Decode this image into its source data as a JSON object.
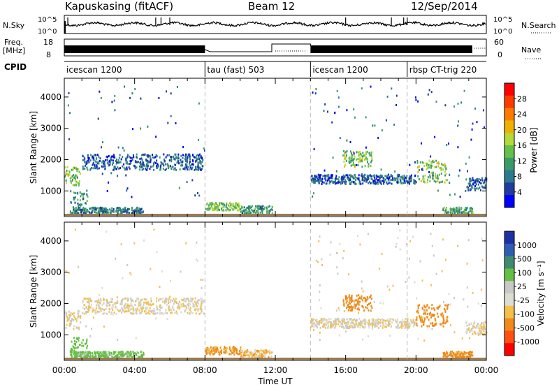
{
  "header": {
    "station": "Kapuskasing (fitACF)",
    "beam": "Beam 12",
    "date": "12/Sep/2014"
  },
  "left_labels": {
    "nsky": "N.Sky",
    "freq_line1": "Freq.",
    "freq_line2": "[MHz]",
    "cpid": "CPID"
  },
  "right_labels": {
    "nsearch": "N.Search",
    "nave": "Nave"
  },
  "panels": {
    "nsky_ticks": [
      "10^5",
      "10^0"
    ],
    "nsearch_ticks": [
      "10^5",
      "10^0"
    ],
    "freq_ticks": [
      "18",
      "8"
    ],
    "nave_ticks": [
      "60",
      "0"
    ]
  },
  "cpid_segments": [
    {
      "label": "icescan 1200",
      "start": 0,
      "end": 8
    },
    {
      "label": "tau (fast) 503",
      "start": 8,
      "end": 14
    },
    {
      "label": "icescan 1200",
      "start": 14,
      "end": 19.5
    },
    {
      "label": "rbsp CT-trig 220",
      "start": 19.5,
      "end": 23.2
    }
  ],
  "colors": {
    "power": [
      "#0000ff",
      "#1f3c9e",
      "#2b7a8f",
      "#3a9a6a",
      "#63c04a",
      "#b5d83a",
      "#f0b000",
      "#ff7a00",
      "#ff3a00",
      "#ff0000"
    ],
    "velocity": [
      "#1f2fa8",
      "#2f5db0",
      "#3f8a70",
      "#63c043",
      "#c8c8c8",
      "#dcdcd0",
      "#f5c04a",
      "#f08a1a",
      "#ff5010",
      "#ff0000"
    ]
  },
  "chart_data": [
    {
      "type": "heatmap",
      "name": "power",
      "xlabel": "",
      "ylabel": "Slant Range [km]",
      "xlim": [
        0,
        24
      ],
      "ylim": [
        180,
        4600
      ],
      "yticks": [
        1000,
        2000,
        3000,
        4000
      ],
      "colorbar_label": "Power [dB]",
      "colorbar_ticks": [
        "4",
        "8",
        "12",
        "16",
        "20",
        "24",
        "28"
      ],
      "colorbar_range": [
        0,
        30
      ],
      "echo_regions": [
        {
          "x0": 0.0,
          "x1": 0.9,
          "y0": 1200,
          "y1": 1800,
          "level": 14
        },
        {
          "x0": 0.3,
          "x1": 1.3,
          "y0": 300,
          "y1": 1000,
          "level": 10
        },
        {
          "x0": 0.5,
          "x1": 4.5,
          "y0": 300,
          "y1": 500,
          "level": 8
        },
        {
          "x0": 1.0,
          "x1": 7.9,
          "y0": 1700,
          "y1": 2200,
          "level": 6
        },
        {
          "x0": 8.0,
          "x1": 10.0,
          "y0": 400,
          "y1": 650,
          "level": 14
        },
        {
          "x0": 10.0,
          "x1": 11.8,
          "y0": 300,
          "y1": 550,
          "level": 10
        },
        {
          "x0": 14.0,
          "x1": 20.0,
          "y0": 1250,
          "y1": 1550,
          "level": 6
        },
        {
          "x0": 15.8,
          "x1": 17.5,
          "y0": 1800,
          "y1": 2300,
          "level": 14
        },
        {
          "x0": 20.0,
          "x1": 21.8,
          "y0": 1300,
          "y1": 2000,
          "level": 14
        },
        {
          "x0": 21.5,
          "x1": 23.2,
          "y0": 300,
          "y1": 500,
          "level": 12
        },
        {
          "x0": 22.8,
          "x1": 24.0,
          "y0": 1050,
          "y1": 1450,
          "level": 6
        }
      ]
    },
    {
      "type": "heatmap",
      "name": "velocity",
      "xlabel": "Time UT",
      "ylabel": "Slant Range [km]",
      "xlim": [
        0,
        24
      ],
      "ylim": [
        180,
        4600
      ],
      "xticks": [
        "00:00",
        "04:00",
        "08:00",
        "12:00",
        "16:00",
        "20:00",
        "00:00"
      ],
      "yticks": [
        1000,
        2000,
        3000,
        4000
      ],
      "colorbar_label": "Velocity [m s⁻¹]",
      "colorbar_ticks": [
        "1000",
        "500",
        "100",
        "25",
        "-25",
        "-100",
        "-500",
        "-1000"
      ],
      "echo_regions": [
        {
          "x0": 0.0,
          "x1": 0.9,
          "y0": 1200,
          "y1": 1800,
          "v": 0
        },
        {
          "x0": 0.3,
          "x1": 1.3,
          "y0": 300,
          "y1": 1000,
          "v": 200
        },
        {
          "x0": 0.5,
          "x1": 4.5,
          "y0": 300,
          "y1": 500,
          "v": 150
        },
        {
          "x0": 1.0,
          "x1": 7.9,
          "y0": 1700,
          "y1": 2200,
          "v": 0
        },
        {
          "x0": 8.0,
          "x1": 10.0,
          "y0": 400,
          "y1": 650,
          "v": -150
        },
        {
          "x0": 10.0,
          "x1": 11.8,
          "y0": 300,
          "y1": 550,
          "v": -60
        },
        {
          "x0": 14.0,
          "x1": 20.0,
          "y0": 1250,
          "y1": 1550,
          "v": 0
        },
        {
          "x0": 15.8,
          "x1": 17.5,
          "y0": 1800,
          "y1": 2300,
          "v": -300
        },
        {
          "x0": 20.0,
          "x1": 21.8,
          "y0": 1300,
          "y1": 2000,
          "v": -300
        },
        {
          "x0": 21.5,
          "x1": 23.2,
          "y0": 300,
          "y1": 500,
          "v": -150
        },
        {
          "x0": 22.8,
          "x1": 24.0,
          "y0": 1050,
          "y1": 1450,
          "v": 0
        }
      ]
    }
  ]
}
